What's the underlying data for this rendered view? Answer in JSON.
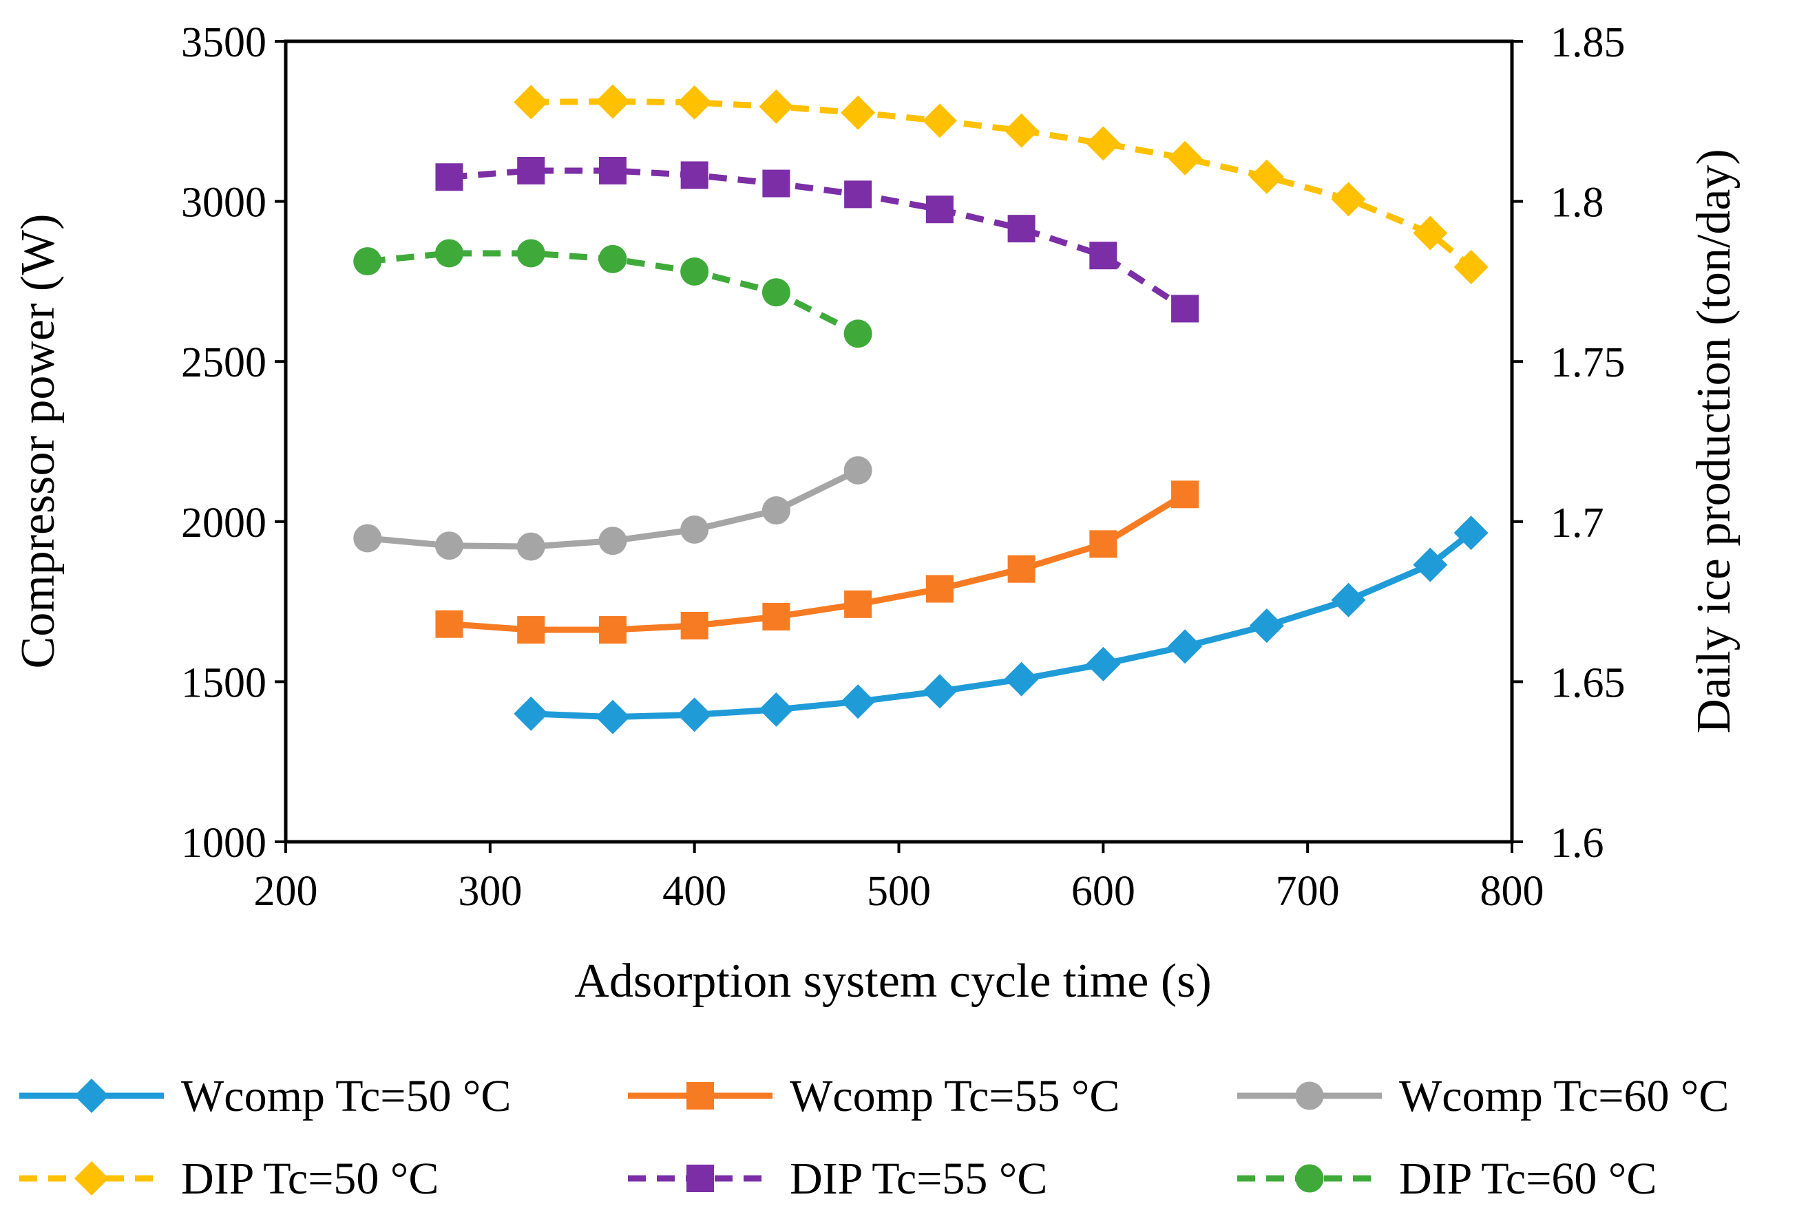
{
  "chart_data": {
    "type": "line",
    "title": "",
    "xlabel": "Adsorption system cycle time (s)",
    "ylabel": "Compressor power (W)",
    "y2label": "Daily ice production (ton/day)",
    "xlim": [
      200,
      800
    ],
    "ylim": [
      1000,
      3500
    ],
    "y2lim": [
      1.6,
      1.85
    ],
    "x_ticks": [
      "200",
      "300",
      "400",
      "500",
      "600",
      "700",
      "800"
    ],
    "y_ticks": [
      "1000",
      "1500",
      "2000",
      "2500",
      "3000",
      "3500"
    ],
    "y2_ticks": [
      "1.6",
      "1.65",
      "1.7",
      "1.75",
      "1.8",
      "1.85"
    ],
    "grid": false,
    "legend_position": "bottom",
    "series": [
      {
        "name": "Wcomp Tc=50 °C",
        "axis": "left",
        "color": "#1F9BD7",
        "marker": "diamond",
        "dash": "solid",
        "x": [
          320,
          360,
          400,
          440,
          480,
          520,
          560,
          600,
          640,
          680,
          720,
          760,
          780
        ],
        "values": [
          1400,
          1390,
          1397,
          1413,
          1438,
          1470,
          1508,
          1555,
          1610,
          1675,
          1755,
          1865,
          1965
        ]
      },
      {
        "name": "Wcomp Tc=55 °C",
        "axis": "left",
        "color": "#F77B22",
        "marker": "square",
        "dash": "solid",
        "x": [
          280,
          320,
          360,
          400,
          440,
          480,
          520,
          560,
          600,
          640
        ],
        "values": [
          1680,
          1662,
          1662,
          1675,
          1703,
          1742,
          1790,
          1852,
          1930,
          2085
        ]
      },
      {
        "name": "Wcomp Tc=60 °C",
        "axis": "left",
        "color": "#A5A5A5",
        "marker": "circle",
        "dash": "solid",
        "x": [
          240,
          280,
          320,
          360,
          400,
          440,
          480
        ],
        "values": [
          1948,
          1925,
          1922,
          1940,
          1975,
          2035,
          2160
        ]
      },
      {
        "name": "DIP Tc=50 °C",
        "axis": "right",
        "color": "#FFC000",
        "marker": "diamond",
        "dash": "dashed",
        "x": [
          320,
          360,
          400,
          440,
          480,
          520,
          560,
          600,
          640,
          680,
          720,
          760,
          780
        ],
        "values": [
          1.831,
          1.8312,
          1.8309,
          1.8296,
          1.8277,
          1.8252,
          1.8221,
          1.8181,
          1.8135,
          1.8077,
          1.8007,
          1.7901,
          1.7795
        ]
      },
      {
        "name": "DIP Tc=55 °C",
        "axis": "right",
        "color": "#7B2EA6",
        "marker": "square",
        "dash": "dashed",
        "x": [
          280,
          320,
          360,
          400,
          440,
          480,
          520,
          560,
          600,
          640
        ],
        "values": [
          1.8076,
          1.8096,
          1.8096,
          1.8082,
          1.8056,
          1.8022,
          1.7975,
          1.7915,
          1.7831,
          1.7665
        ]
      },
      {
        "name": "DIP Tc=60 °C",
        "axis": "right",
        "color": "#3FAA3A",
        "marker": "circle",
        "dash": "dashed",
        "x": [
          240,
          280,
          320,
          360,
          400,
          440,
          480
        ],
        "values": [
          1.7813,
          1.7838,
          1.7838,
          1.782,
          1.7781,
          1.7716,
          1.7587
        ]
      }
    ]
  }
}
